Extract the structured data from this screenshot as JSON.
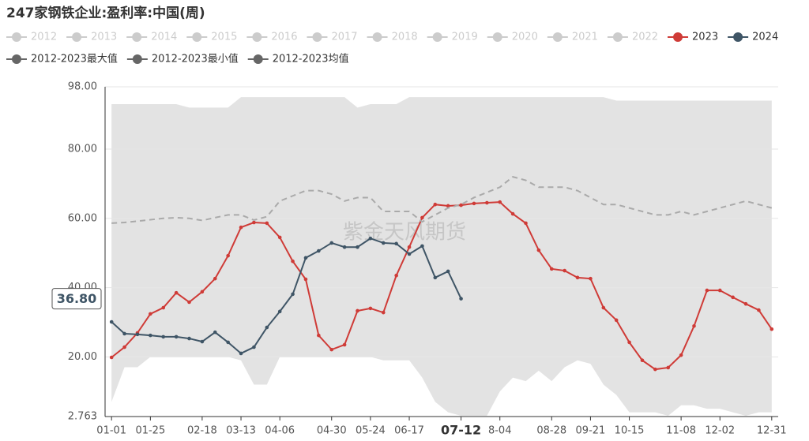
{
  "chart_data": {
    "type": "line",
    "title": "247家钢铁企业:盈利率:中国(周)",
    "watermark": "紫金天风期货",
    "categories": [
      "01-01",
      null,
      null,
      "01-25",
      null,
      null,
      null,
      "02-18",
      null,
      null,
      "03-13",
      null,
      null,
      "04-06",
      null,
      null,
      null,
      "04-30",
      null,
      null,
      "05-24",
      null,
      null,
      "06-17",
      null,
      null,
      null,
      "07-12",
      null,
      null,
      "8-04",
      null,
      null,
      null,
      "08-28",
      null,
      null,
      "09-21",
      null,
      null,
      "10-15",
      null,
      null,
      null,
      "11-08",
      null,
      null,
      "12-02",
      null,
      null,
      null,
      "12-31"
    ],
    "active_index": 27,
    "ylim": [
      2.763,
      98
    ],
    "yticks": [
      2.763,
      {
        "value": 20,
        "label": "20.00"
      },
      {
        "value": 40,
        "label": "40.00"
      },
      {
        "value": 60,
        "label": "60.00"
      },
      {
        "value": 80,
        "label": "80.00"
      },
      {
        "value": 98,
        "label": "98.00"
      }
    ],
    "y_pointer": {
      "value": 36.8,
      "label": "36.80"
    },
    "grid": true,
    "series": [
      {
        "name": "2012",
        "color": "#cccccc",
        "visible": false
      },
      {
        "name": "2013",
        "color": "#cccccc",
        "visible": false
      },
      {
        "name": "2014",
        "color": "#cccccc",
        "visible": false
      },
      {
        "name": "2015",
        "color": "#cccccc",
        "visible": false
      },
      {
        "name": "2016",
        "color": "#cccccc",
        "visible": false
      },
      {
        "name": "2017",
        "color": "#cccccc",
        "visible": false
      },
      {
        "name": "2018",
        "color": "#cccccc",
        "visible": false
      },
      {
        "name": "2019",
        "color": "#cccccc",
        "visible": false
      },
      {
        "name": "2020",
        "color": "#cccccc",
        "visible": false
      },
      {
        "name": "2021",
        "color": "#cccccc",
        "visible": false
      },
      {
        "name": "2022",
        "color": "#cccccc",
        "visible": false
      },
      {
        "name": "2023",
        "color": "#cf3b37",
        "style": "line",
        "values": [
          19.85,
          22.8,
          26.9,
          32.4,
          34.2,
          38.5,
          35.8,
          38.8,
          42.6,
          49.2,
          57.4,
          58.8,
          58.6,
          54.5,
          47.6,
          42.4,
          26.2,
          22.1,
          23.5,
          33.3,
          34.0,
          32.8,
          43.5,
          51.7,
          60.2,
          64.0,
          63.6,
          63.8,
          64.3,
          64.5,
          64.7,
          61.3,
          58.6,
          50.8,
          45.4,
          44.9,
          42.9,
          42.6,
          34.2,
          30.6,
          24.2,
          19.0,
          16.4,
          16.9,
          20.5,
          28.9,
          39.2,
          39.2,
          37.2,
          35.3,
          33.5,
          28.0
        ]
      },
      {
        "name": "2024",
        "color": "#3f5566",
        "style": "line",
        "values": [
          30.1,
          26.7,
          26.5,
          26.2,
          25.8,
          25.8,
          25.3,
          24.4,
          27.1,
          24.2,
          21.0,
          22.8,
          28.5,
          33.1,
          38.1,
          48.6,
          50.6,
          52.9,
          51.7,
          51.7,
          54.2,
          52.9,
          52.7,
          49.7,
          52.0,
          42.9,
          44.7,
          36.8,
          null,
          null,
          null,
          null,
          null,
          null,
          null,
          null,
          null,
          null,
          null,
          null,
          null,
          null,
          null,
          null,
          null,
          null,
          null,
          null,
          null,
          null,
          null,
          null
        ]
      },
      {
        "name": "2012-2023最大值",
        "color": "#666666",
        "style": "band-max",
        "values": [
          93.0,
          93.0,
          93.0,
          93.0,
          93.0,
          93.0,
          92.0,
          92.0,
          92.0,
          92.0,
          95.0,
          95.0,
          95.0,
          95.0,
          95.0,
          95.0,
          95.0,
          95.0,
          95.0,
          92.0,
          93.0,
          93.0,
          93.0,
          95.0,
          95.0,
          95.0,
          95.0,
          95.0,
          95.0,
          95.0,
          95.0,
          95.0,
          95.0,
          95.0,
          95.0,
          95.0,
          95.0,
          95.0,
          95.0,
          94.0,
          94.0,
          94.0,
          94.0,
          94.0,
          94.0,
          94.0,
          94.0,
          94.0,
          94.0,
          94.0,
          94.0,
          94.0
        ]
      },
      {
        "name": "2012-2023最小值",
        "color": "#666666",
        "style": "band-min",
        "values": [
          7.0,
          17.0,
          17.0,
          20.0,
          20.0,
          20.0,
          20.0,
          20.0,
          20.0,
          20.0,
          19.0,
          12.0,
          12.0,
          20.0,
          20.0,
          20.0,
          20.0,
          20.0,
          20.0,
          20.0,
          20.0,
          19.0,
          19.0,
          19.0,
          14.0,
          7.0,
          4.0,
          3.0,
          3.0,
          3.0,
          10.0,
          14.0,
          13.0,
          16.0,
          13.0,
          17.0,
          19.0,
          18.0,
          12.0,
          9.0,
          4.0,
          4.0,
          4.0,
          3.0,
          6.0,
          6.0,
          5.0,
          5.0,
          4.0,
          3.0,
          4.0,
          4.0
        ]
      },
      {
        "name": "2012-2023均值",
        "color": "#666666",
        "style": "dashed",
        "values": [
          58.6,
          58.8,
          59.2,
          59.6,
          60.0,
          60.2,
          60.0,
          59.4,
          60.2,
          61.0,
          61.0,
          59.5,
          60.5,
          65.0,
          66.5,
          68.0,
          68.0,
          67.0,
          65.0,
          66.0,
          66.0,
          62.0,
          62.0,
          62.0,
          59.0,
          61.0,
          63.0,
          64.0,
          66.0,
          67.5,
          69.0,
          72.0,
          71.0,
          69.0,
          69.0,
          69.0,
          68.0,
          66.0,
          64.0,
          64.0,
          63.0,
          62.0,
          61.0,
          61.0,
          62.0,
          61.0,
          62.0,
          63.0,
          64.0,
          65.0,
          64.0,
          63.0
        ]
      }
    ]
  }
}
